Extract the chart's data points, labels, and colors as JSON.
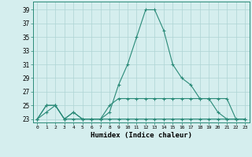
{
  "title": "",
  "xlabel": "Humidex (Indice chaleur)",
  "x": [
    0,
    1,
    2,
    3,
    4,
    5,
    6,
    7,
    8,
    9,
    10,
    11,
    12,
    13,
    14,
    15,
    16,
    17,
    18,
    19,
    20,
    21,
    22,
    23
  ],
  "line1": [
    23,
    25,
    25,
    23,
    24,
    23,
    23,
    23,
    24,
    28,
    31,
    35,
    39,
    39,
    36,
    31,
    29,
    28,
    26,
    26,
    24,
    23,
    23,
    23
  ],
  "line2": [
    23,
    25,
    25,
    23,
    24,
    23,
    23,
    23,
    25,
    26,
    26,
    26,
    26,
    26,
    26,
    26,
    26,
    26,
    26,
    26,
    26,
    26,
    23,
    23
  ],
  "line3": [
    23,
    24,
    25,
    23,
    23,
    23,
    23,
    23,
    23,
    23,
    23,
    23,
    23,
    23,
    23,
    23,
    23,
    23,
    23,
    23,
    23,
    23,
    23,
    23
  ],
  "ylim": [
    22.5,
    40.2
  ],
  "xlim": [
    -0.5,
    23.5
  ],
  "yticks": [
    23,
    25,
    27,
    29,
    31,
    33,
    35,
    37,
    39
  ],
  "xticks": [
    0,
    1,
    2,
    3,
    4,
    5,
    6,
    7,
    8,
    9,
    10,
    11,
    12,
    13,
    14,
    15,
    16,
    17,
    18,
    19,
    20,
    21,
    22,
    23
  ],
  "line_color": "#2a8a78",
  "bg_color": "#d5eeee",
  "grid_color": "#aed4d4",
  "figsize": [
    3.2,
    2.0
  ],
  "dpi": 100
}
